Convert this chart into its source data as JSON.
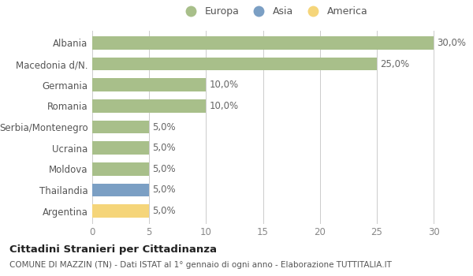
{
  "categories": [
    "Albania",
    "Macedonia d/N.",
    "Germania",
    "Romania",
    "Serbia/Montenegro",
    "Ucraina",
    "Moldova",
    "Thailandia",
    "Argentina"
  ],
  "values": [
    30.0,
    25.0,
    10.0,
    10.0,
    5.0,
    5.0,
    5.0,
    5.0,
    5.0
  ],
  "colors": [
    "#a8bf8a",
    "#a8bf8a",
    "#a8bf8a",
    "#a8bf8a",
    "#a8bf8a",
    "#a8bf8a",
    "#a8bf8a",
    "#7b9fc4",
    "#f5d57a"
  ],
  "legend_labels": [
    "Europa",
    "Asia",
    "America"
  ],
  "legend_colors": [
    "#a8bf8a",
    "#7b9fc4",
    "#f5d57a"
  ],
  "title": "Cittadini Stranieri per Cittadinanza",
  "subtitle": "COMUNE DI MAZZIN (TN) - Dati ISTAT al 1° gennaio di ogni anno - Elaborazione TUTTITALIA.IT",
  "xlim": [
    0,
    32
  ],
  "xticks": [
    0,
    5,
    10,
    15,
    20,
    25,
    30
  ],
  "bar_height": 0.62,
  "label_fontsize": 8.5,
  "background_color": "#ffffff",
  "grid_color": "#cccccc"
}
